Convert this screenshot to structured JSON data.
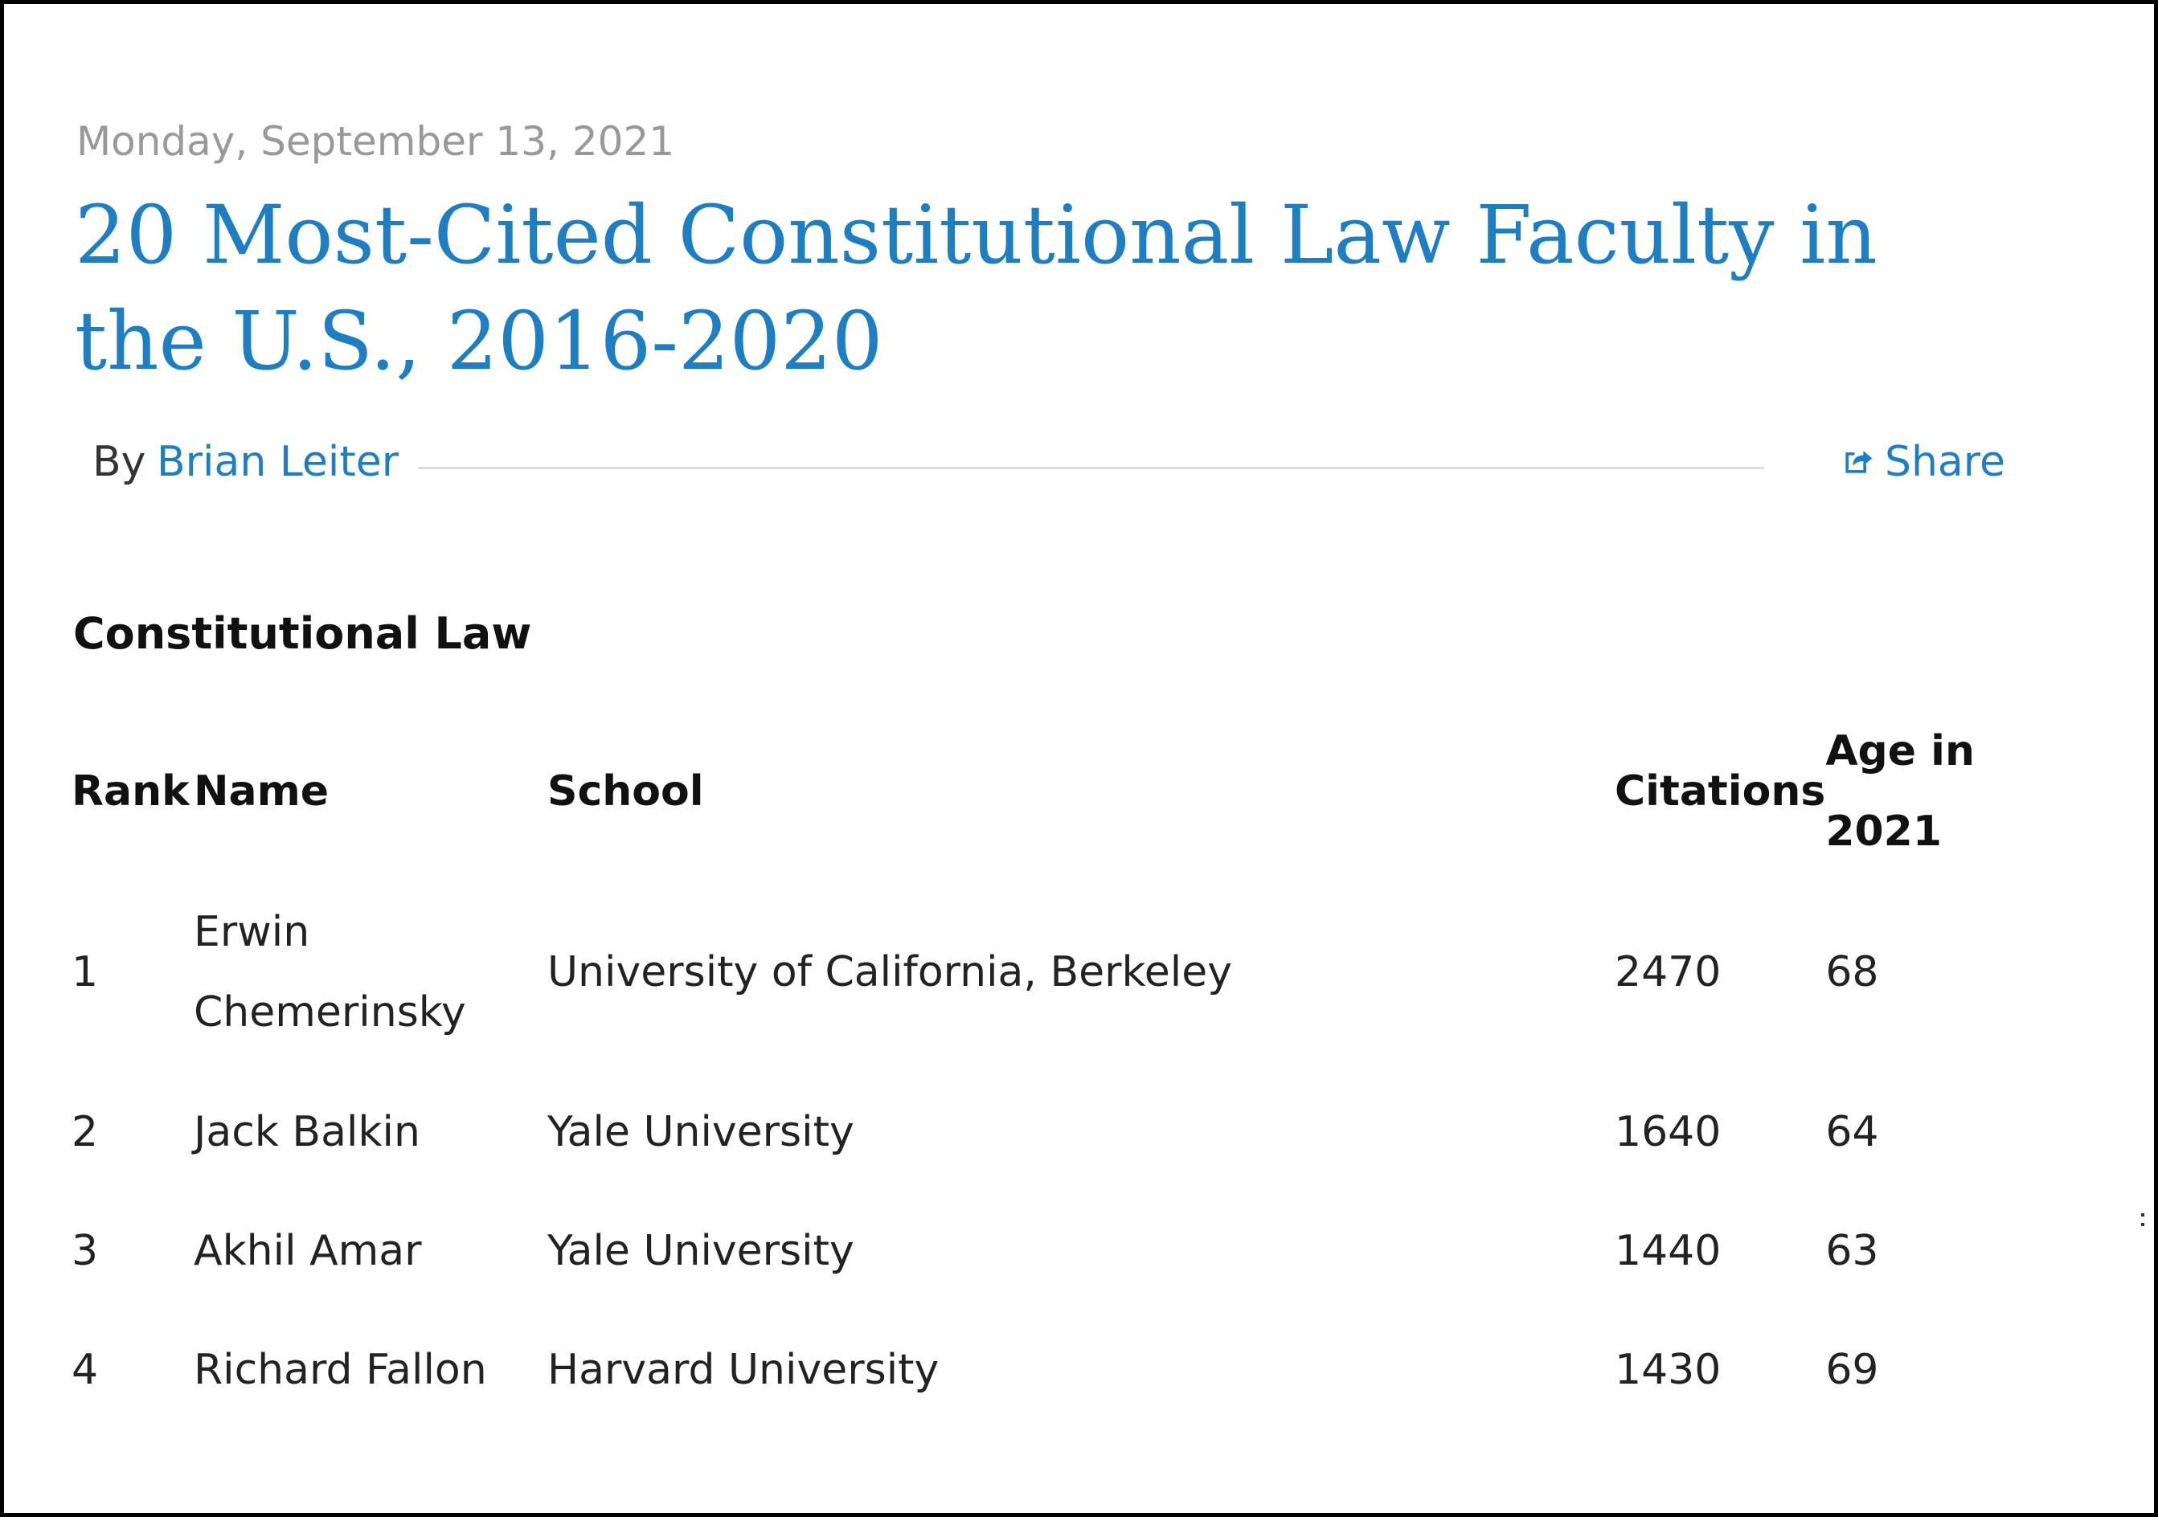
{
  "post": {
    "date": "Monday, September 13, 2021",
    "title": "20 Most-Cited Constitutional Law Faculty in the U.S., 2016-2020",
    "by_label": "By",
    "author": "Brian Leiter",
    "share_label": "Share",
    "share_icon": "share-icon"
  },
  "section": {
    "heading": "Constitutional Law"
  },
  "table": {
    "headers": {
      "rank": "Rank",
      "name": "Name",
      "school": "School",
      "citations": "Citations",
      "age": "Age in 2021"
    },
    "rows": [
      {
        "rank": "1",
        "name": "Erwin Chemerinsky",
        "school": "University of California, Berkeley",
        "citations": "2470",
        "age": "68"
      },
      {
        "rank": "2",
        "name": "Jack Balkin",
        "school": "Yale University",
        "citations": "1640",
        "age": "64"
      },
      {
        "rank": "3",
        "name": "Akhil Amar",
        "school": "Yale University",
        "citations": "1440",
        "age": "63"
      },
      {
        "rank": "4",
        "name": "Richard Fallon",
        "school": "Harvard University",
        "citations": "1430",
        "age": "69"
      }
    ]
  },
  "colors": {
    "link": "#1f7ec1",
    "date": "#999999",
    "text": "#222222"
  }
}
